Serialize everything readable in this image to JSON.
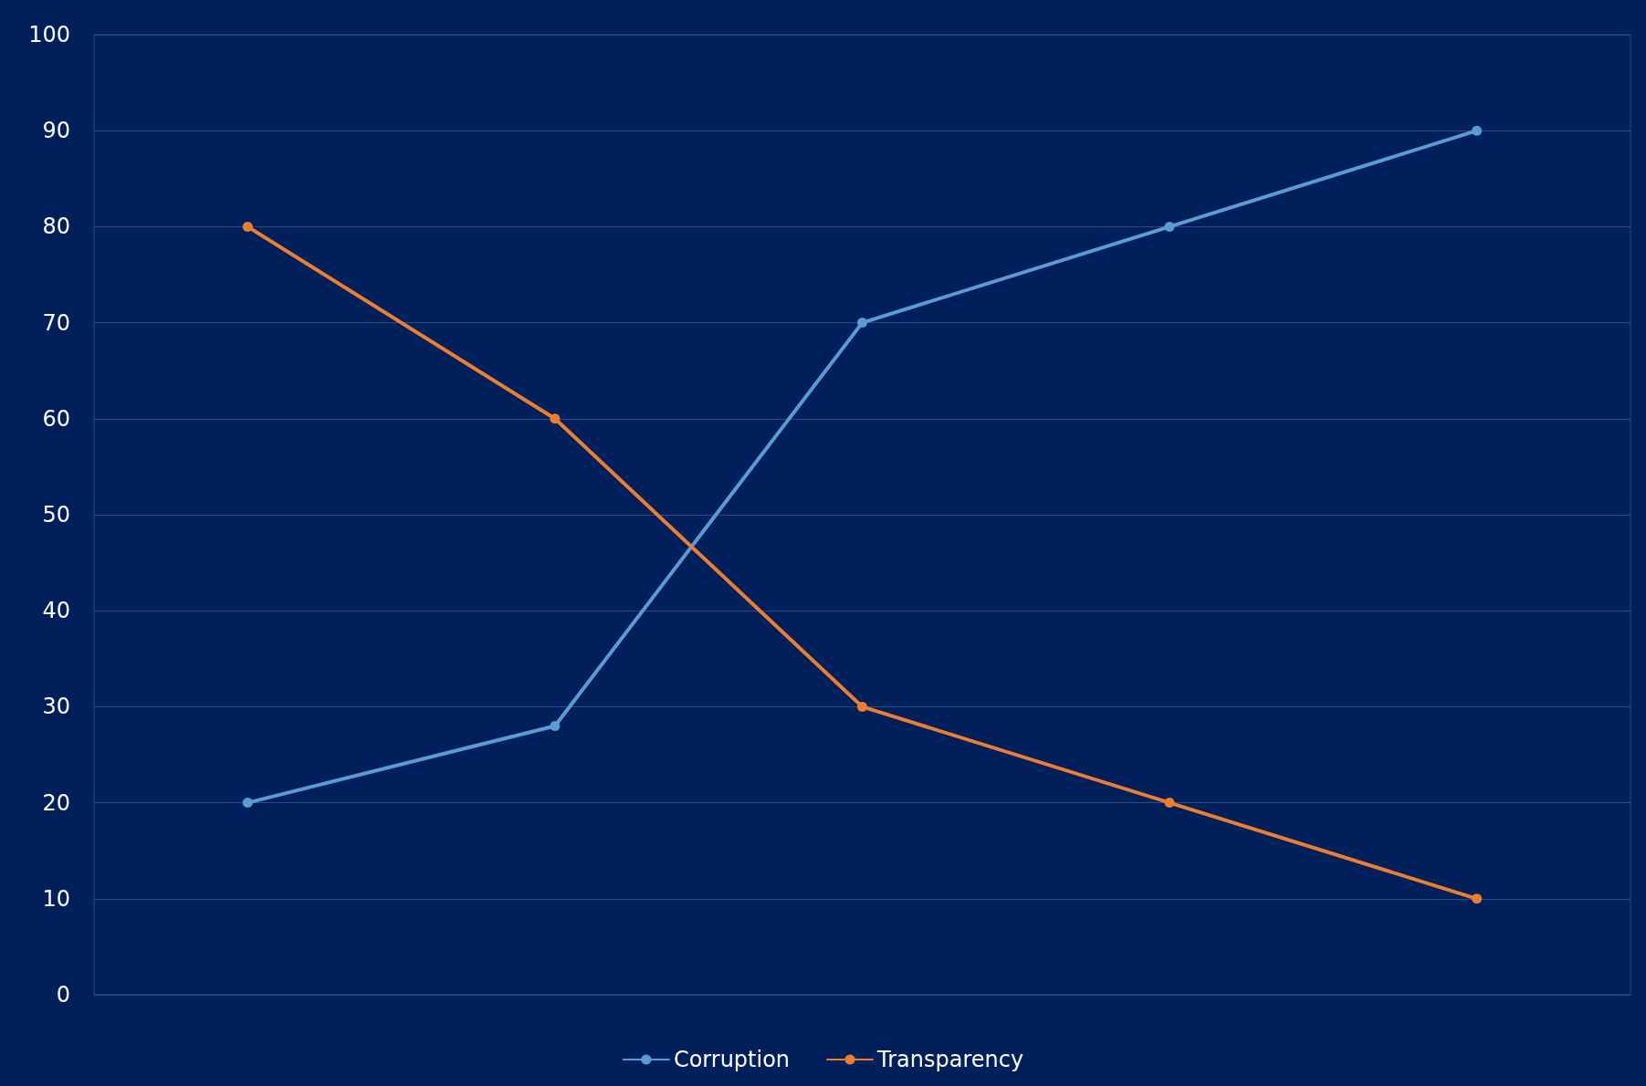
{
  "chart_data": {
    "type": "line",
    "categories": [
      null,
      null,
      null,
      null,
      null
    ],
    "series": [
      {
        "name": "Corruption",
        "color": "#5b9bd5",
        "values": [
          20,
          28,
          70,
          80,
          90
        ]
      },
      {
        "name": "Transparency",
        "color": "#ed7d31",
        "values": [
          80,
          60,
          30,
          20,
          10
        ]
      }
    ],
    "ylim": [
      0,
      100
    ],
    "yticks": [
      0,
      10,
      20,
      30,
      40,
      50,
      60,
      70,
      80,
      90,
      100
    ],
    "grid": "y",
    "legend": "bottom",
    "marker": "circle",
    "line_style": "solid"
  }
}
